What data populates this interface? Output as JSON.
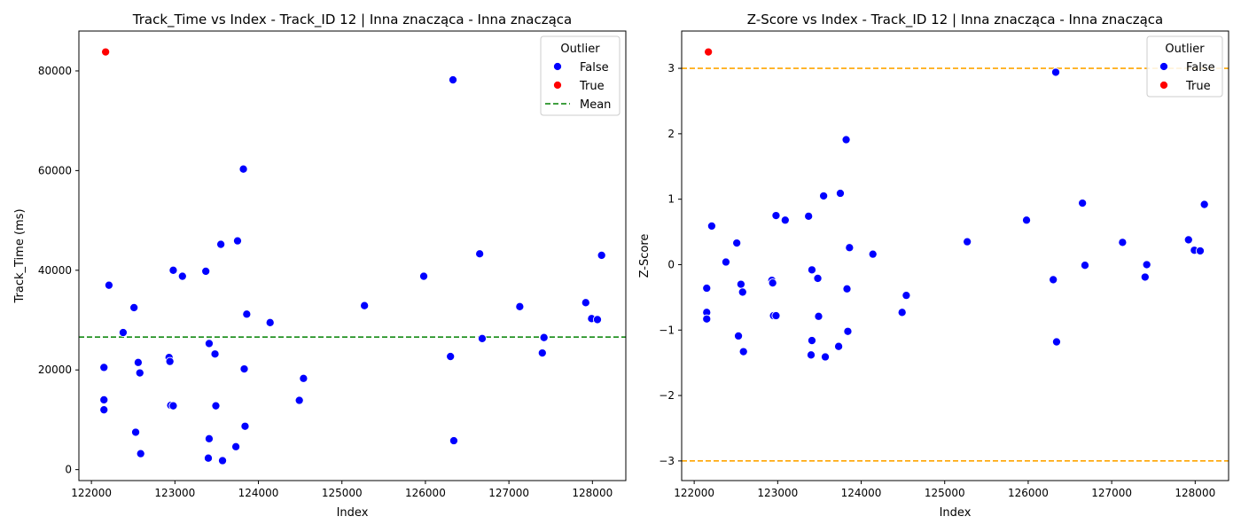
{
  "chart_data": [
    {
      "type": "scatter",
      "title": "Track_Time vs Index - Track_ID 12 | Inna znacząca - Inna znacząca",
      "xlabel": "Index",
      "ylabel": "Track_Time (ms)",
      "xlim": [
        121850,
        128400
      ],
      "ylim": [
        -2200,
        88000
      ],
      "xticks": [
        122000,
        123000,
        124000,
        125000,
        126000,
        127000,
        128000
      ],
      "xtick_labels": [
        "122000",
        "123000",
        "124000",
        "125000",
        "126000",
        "127000",
        "128000"
      ],
      "yticks": [
        0,
        20000,
        40000,
        60000,
        80000
      ],
      "ytick_labels": [
        "0",
        "20000",
        "40000",
        "60000",
        "80000"
      ],
      "grid": false,
      "legend": {
        "placement": "top-right",
        "title": "Outlier",
        "entries": [
          {
            "label": "False",
            "kind": "marker",
            "color": "#0000ff"
          },
          {
            "label": "True",
            "kind": "marker",
            "color": "#ff0000"
          },
          {
            "label": "Mean",
            "kind": "dashed-line",
            "color": "#008000"
          }
        ]
      },
      "reference_lines": [
        {
          "name": "Mean",
          "y": 26600,
          "color": "#008000",
          "style": "dashed"
        }
      ],
      "series": [
        {
          "name": "False",
          "color": "#0000ff",
          "points": [
            [
              122150,
              14000
            ],
            [
              122150,
              12000
            ],
            [
              122150,
              20500
            ],
            [
              122210,
              37000
            ],
            [
              122380,
              27500
            ],
            [
              122510,
              32500
            ],
            [
              122530,
              7500
            ],
            [
              122560,
              21500
            ],
            [
              122580,
              19400
            ],
            [
              122590,
              3200
            ],
            [
              122930,
              22500
            ],
            [
              122940,
              21700
            ],
            [
              122950,
              12900
            ],
            [
              122980,
              12800
            ],
            [
              122980,
              40000
            ],
            [
              123090,
              38800
            ],
            [
              123370,
              39800
            ],
            [
              123400,
              2300
            ],
            [
              123410,
              25300
            ],
            [
              123410,
              6200
            ],
            [
              123480,
              23200
            ],
            [
              123490,
              12800
            ],
            [
              123550,
              45200
            ],
            [
              123570,
              1800
            ],
            [
              123730,
              4600
            ],
            [
              123750,
              45900
            ],
            [
              123820,
              60300
            ],
            [
              123830,
              20200
            ],
            [
              123840,
              8700
            ],
            [
              123860,
              31200
            ],
            [
              124140,
              29500
            ],
            [
              124490,
              13900
            ],
            [
              124540,
              18300
            ],
            [
              125270,
              32900
            ],
            [
              125980,
              38800
            ],
            [
              126300,
              22700
            ],
            [
              126330,
              78200
            ],
            [
              126340,
              5800
            ],
            [
              126650,
              43300
            ],
            [
              126680,
              26300
            ],
            [
              127130,
              32700
            ],
            [
              127400,
              23400
            ],
            [
              127420,
              26500
            ],
            [
              127920,
              33500
            ],
            [
              127990,
              30300
            ],
            [
              128060,
              30100
            ],
            [
              128110,
              43000
            ]
          ]
        },
        {
          "name": "True",
          "color": "#ff0000",
          "points": [
            [
              122170,
              83800
            ]
          ]
        }
      ]
    },
    {
      "type": "scatter",
      "title": "Z-Score vs Index - Track_ID 12 | Inna znacząca - Inna znacząca",
      "xlabel": "Index",
      "ylabel": "Z-Score",
      "xlim": [
        121850,
        128400
      ],
      "ylim": [
        -3.3,
        3.57
      ],
      "xticks": [
        122000,
        123000,
        124000,
        125000,
        126000,
        127000,
        128000
      ],
      "xtick_labels": [
        "122000",
        "123000",
        "124000",
        "125000",
        "126000",
        "127000",
        "128000"
      ],
      "yticks": [
        -3,
        -2,
        -1,
        0,
        1,
        2,
        3
      ],
      "ytick_labels": [
        "−3",
        "−2",
        "−1",
        "0",
        "1",
        "2",
        "3"
      ],
      "grid": false,
      "legend": {
        "placement": "top-right",
        "title": "Outlier",
        "entries": [
          {
            "label": "False",
            "kind": "marker",
            "color": "#0000ff"
          },
          {
            "label": "True",
            "kind": "marker",
            "color": "#ff0000"
          }
        ]
      },
      "reference_lines": [
        {
          "y": 3,
          "color": "#ffa500",
          "style": "dashed"
        },
        {
          "y": -3,
          "color": "#ffa500",
          "style": "dashed"
        }
      ],
      "series": [
        {
          "name": "False",
          "color": "#0000ff",
          "points": [
            [
              122150,
              -0.36
            ],
            [
              122150,
              -0.73
            ],
            [
              122150,
              -0.83
            ],
            [
              122210,
              0.59
            ],
            [
              122380,
              0.04
            ],
            [
              122510,
              0.33
            ],
            [
              122530,
              -1.09
            ],
            [
              122560,
              -0.3
            ],
            [
              122580,
              -0.42
            ],
            [
              122590,
              -1.33
            ],
            [
              122930,
              -0.24
            ],
            [
              122940,
              -0.28
            ],
            [
              122950,
              -0.78
            ],
            [
              122980,
              -0.78
            ],
            [
              122980,
              0.75
            ],
            [
              123090,
              0.68
            ],
            [
              123370,
              0.74
            ],
            [
              123400,
              -1.38
            ],
            [
              123410,
              -0.08
            ],
            [
              123410,
              -1.16
            ],
            [
              123480,
              -0.21
            ],
            [
              123490,
              -0.79
            ],
            [
              123550,
              1.05
            ],
            [
              123570,
              -1.41
            ],
            [
              123730,
              -1.25
            ],
            [
              123750,
              1.09
            ],
            [
              123820,
              1.91
            ],
            [
              123830,
              -0.37
            ],
            [
              123840,
              -1.02
            ],
            [
              123860,
              0.26
            ],
            [
              124140,
              0.16
            ],
            [
              124490,
              -0.73
            ],
            [
              124540,
              -0.47
            ],
            [
              125270,
              0.35
            ],
            [
              125980,
              0.68
            ],
            [
              126300,
              -0.23
            ],
            [
              126330,
              2.94
            ],
            [
              126340,
              -1.18
            ],
            [
              126650,
              0.94
            ],
            [
              126680,
              -0.01
            ],
            [
              127130,
              0.34
            ],
            [
              127400,
              -0.19
            ],
            [
              127420,
              0.0
            ],
            [
              127920,
              0.38
            ],
            [
              127990,
              0.22
            ],
            [
              128060,
              0.21
            ],
            [
              128110,
              0.92
            ]
          ]
        },
        {
          "name": "True",
          "color": "#ff0000",
          "points": [
            [
              122170,
              3.25
            ]
          ]
        }
      ]
    }
  ]
}
